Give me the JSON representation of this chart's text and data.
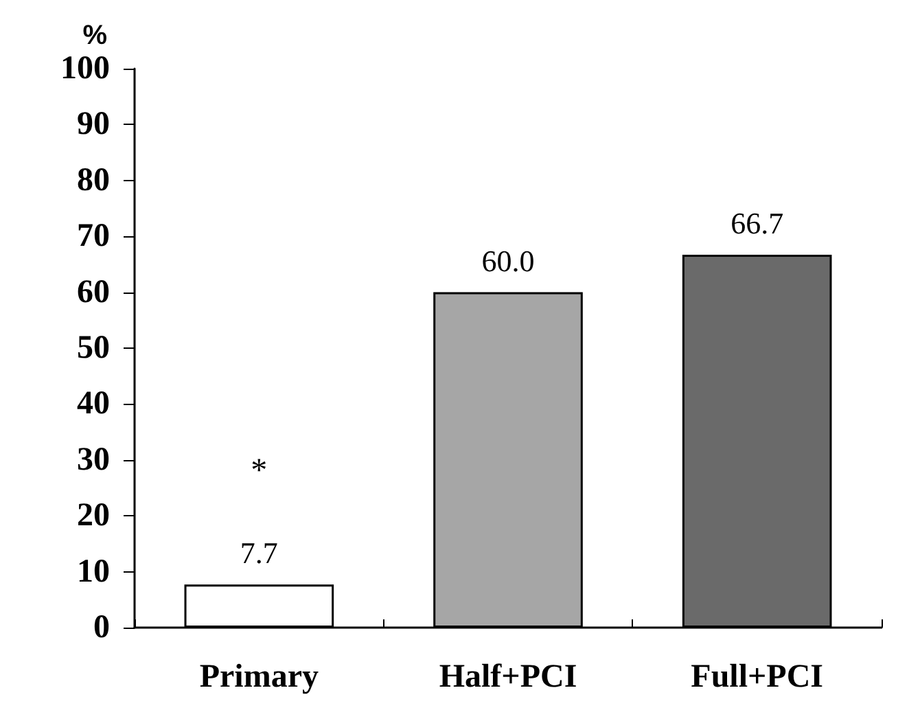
{
  "chart_data": {
    "type": "bar",
    "ylabel": "%",
    "categories": [
      "Primary",
      "Half+PCI",
      "Full+PCI"
    ],
    "values": [
      7.7,
      60.0,
      66.7
    ],
    "colors": [
      "#ffffff",
      "#a6a6a6",
      "#6a6a6a"
    ],
    "value_labels": [
      "7.7",
      "60.0",
      "66.7"
    ],
    "ylim": [
      0,
      100
    ],
    "yticks": [
      0,
      10,
      20,
      30,
      40,
      50,
      60,
      70,
      80,
      90,
      100
    ],
    "grid": false,
    "annotations": [
      "*"
    ]
  }
}
